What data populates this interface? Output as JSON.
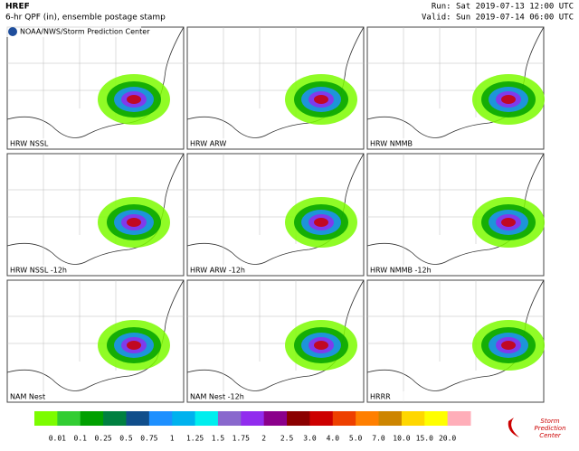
{
  "header": {
    "model": "HREF",
    "subtitle": "6-hr QPF (in), ensemble postage stamp",
    "run": "Run: Sat 2019-07-13 12:00 UTC",
    "valid": "Valid: Sun 2019-07-14 06:00 UTC"
  },
  "credit": "NOAA/NWS/Storm Prediction Center",
  "panels": [
    {
      "label": "HRW NSSL"
    },
    {
      "label": "HRW ARW"
    },
    {
      "label": "HRW NMMB"
    },
    {
      "label": "HRW NSSL -12h"
    },
    {
      "label": "HRW ARW -12h"
    },
    {
      "label": "HRW NMMB -12h"
    },
    {
      "label": "NAM Nest"
    },
    {
      "label": "NAM Nest -12h"
    },
    {
      "label": "HRRR"
    }
  ],
  "legend": {
    "labels": [
      "0.01",
      "0.1",
      "0.25",
      "0.5",
      "0.75",
      "1",
      "1.25",
      "1.5",
      "1.75",
      "2",
      "2.5",
      "3.0",
      "4.0",
      "5.0",
      "7.0",
      "10.0",
      "15.0",
      "20.0"
    ],
    "colors": [
      "#7cfc00",
      "#32cd32",
      "#00a000",
      "#008040",
      "#104e8b",
      "#1e90ff",
      "#00b2ee",
      "#00eeee",
      "#8968cd",
      "#912cee",
      "#8b008b",
      "#8b0000",
      "#cd0000",
      "#ee4000",
      "#ff7f00",
      "#cd8500",
      "#ffd700",
      "#ffff00",
      "#ffaeb9"
    ]
  },
  "logo": {
    "line1": "Storm",
    "line2": "Prediction",
    "line3": "Center"
  }
}
